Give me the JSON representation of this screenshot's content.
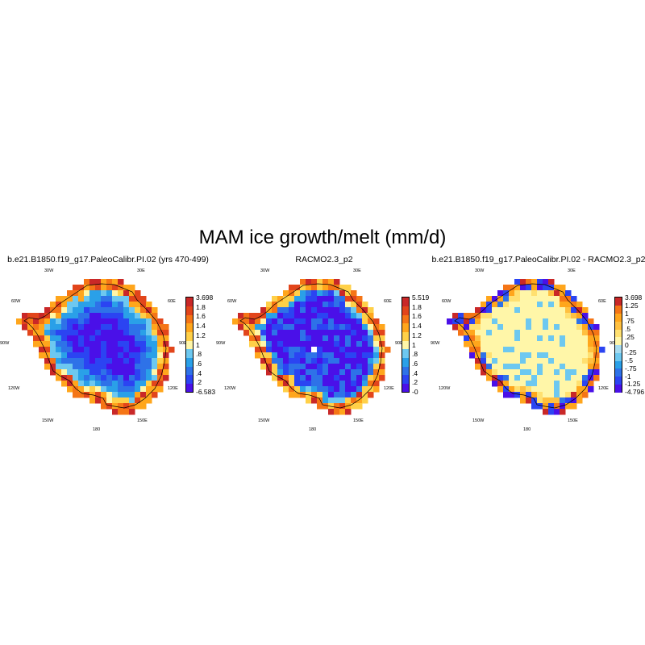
{
  "title": "MAM ice growth/melt (mm/d)",
  "colors": [
    "#4a10e8",
    "#2b44f2",
    "#2e72e8",
    "#2aa0e8",
    "#6dc8f0",
    "#fff6a8",
    "#ffd048",
    "#ffa61c",
    "#f57516",
    "#e2451b",
    "#c92828"
  ],
  "panels": [
    {
      "title": "b.e21.B1850.f19_g17.PaleoCalibr.PI.02 (yrs 470-499)",
      "colorbar_labels": [
        "3.698",
        "1.8",
        "1.6",
        "1.4",
        "1.2",
        "1",
        ".8",
        ".6",
        ".4",
        ".2",
        "-6.583"
      ],
      "field": "model"
    },
    {
      "title": "RACMO2.3_p2",
      "colorbar_labels": [
        "5.519",
        "1.8",
        "1.6",
        "1.4",
        "1.2",
        "1",
        ".8",
        ".6",
        ".4",
        ".2",
        "-0"
      ],
      "field": "obs"
    },
    {
      "title": "b.e21.B1850.f19_g17.PaleoCalibr.PI.02 - RACMO2.3_p2",
      "colorbar_labels": [
        "3.698",
        "1.25",
        "1",
        ".75",
        ".5",
        ".25",
        "0",
        "-.25",
        "-.5",
        "-.75",
        "-1",
        "-1.25",
        "-4.796"
      ],
      "field": "diff"
    }
  ],
  "lon_labels": [
    "30W",
    "30E",
    "60W",
    "60E",
    "90W",
    "90E",
    "120W",
    "120E",
    "150W",
    "150E",
    "180"
  ],
  "chart_data": [
    {
      "type": "heatmap",
      "title": "b.e21.B1850.f19_g17.PaleoCalibr.PI.02 (yrs 470-499)",
      "projection": "south polar stereographic",
      "colorbar_levels": [
        -6.583,
        0.2,
        0.4,
        0.6,
        0.8,
        1,
        1.2,
        1.4,
        1.6,
        1.8,
        3.698
      ],
      "colorbar_min": -6.583,
      "colorbar_max": 3.698
    },
    {
      "type": "heatmap",
      "title": "RACMO2.3_p2",
      "projection": "south polar stereographic",
      "colorbar_levels": [
        0,
        0.2,
        0.4,
        0.6,
        0.8,
        1,
        1.2,
        1.4,
        1.6,
        1.8,
        5.519
      ],
      "colorbar_min": 0,
      "colorbar_max": 5.519
    },
    {
      "type": "heatmap",
      "title": "b.e21.B1850.f19_g17.PaleoCalibr.PI.02 - RACMO2.3_p2",
      "projection": "south polar stereographic",
      "colorbar_levels": [
        -4.796,
        -1.25,
        -1,
        -0.75,
        -0.5,
        -0.25,
        0,
        0.25,
        0.5,
        0.75,
        1,
        1.25,
        3.698
      ],
      "colorbar_min": -4.796,
      "colorbar_max": 3.698
    }
  ]
}
